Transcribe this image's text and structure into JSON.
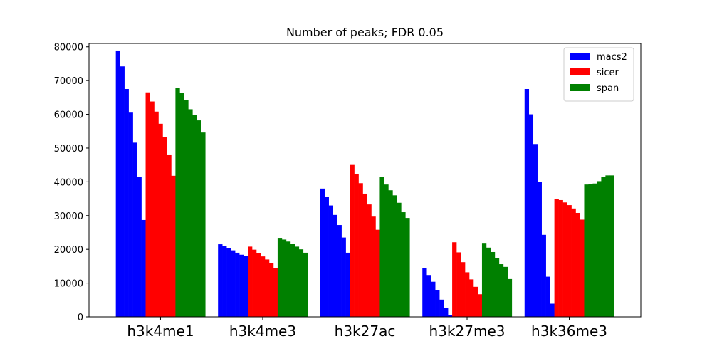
{
  "chart_data": {
    "type": "bar",
    "title": "Number of peaks; FDR 0.05",
    "xlabel": "",
    "ylabel": "",
    "ylim": [
      0,
      81000
    ],
    "yticks": [
      0,
      10000,
      20000,
      30000,
      40000,
      50000,
      60000,
      70000,
      80000
    ],
    "categories": [
      "h3k4me1",
      "h3k4me3",
      "h3k27ac",
      "h3k27me3",
      "h3k36me3"
    ],
    "legend_position": "top-right",
    "grid": false,
    "series": [
      {
        "name": "macs2",
        "color": "#0000ff",
        "values": [
          [
            78900,
            74200,
            67500,
            60500,
            51600,
            41400,
            28700
          ],
          [
            21500,
            21000,
            20300,
            19700,
            19000,
            18400,
            18000
          ],
          [
            38000,
            35600,
            33000,
            30200,
            27200,
            23500,
            19000
          ],
          [
            14500,
            12400,
            10400,
            8000,
            5100,
            2700,
            500
          ],
          [
            67500,
            60000,
            51200,
            39900,
            24300,
            11900,
            3900
          ]
        ]
      },
      {
        "name": "sicer",
        "color": "#ff0000",
        "values": [
          [
            66500,
            63800,
            60800,
            57200,
            53300,
            48100,
            41800
          ],
          [
            20800,
            19900,
            18900,
            17900,
            17000,
            15900,
            14500
          ],
          [
            45000,
            42200,
            39600,
            36500,
            33300,
            29700,
            25800
          ],
          [
            22100,
            19100,
            16200,
            13200,
            11100,
            8900,
            6700
          ],
          [
            35000,
            34600,
            33900,
            33100,
            32100,
            30800,
            28800
          ]
        ]
      },
      {
        "name": "span",
        "color": "#008000",
        "values": [
          [
            67800,
            66400,
            64300,
            61500,
            59900,
            58200,
            54600
          ],
          [
            23400,
            22900,
            22300,
            21600,
            20800,
            20000,
            19000
          ],
          [
            41500,
            39200,
            37500,
            36000,
            33800,
            31000,
            29300
          ],
          [
            21900,
            20500,
            19200,
            17400,
            15600,
            14800,
            11200
          ],
          [
            39200,
            39400,
            39500,
            40200,
            41400,
            41900,
            41900
          ]
        ]
      }
    ]
  }
}
